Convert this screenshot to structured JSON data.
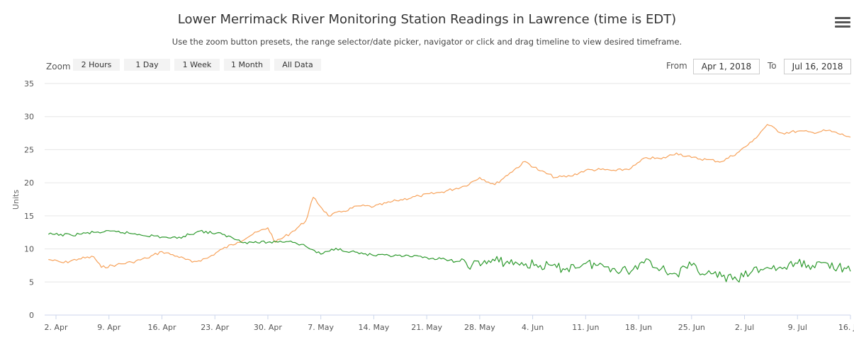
{
  "header": {
    "title": "Lower Merrimack River Monitoring Station Readings in Lawrence (time is EDT)",
    "subtitle": "Use the zoom button presets, the range selector/date picker, navigator or click and drag timeline to view desired timeframe."
  },
  "toolbar": {
    "zoom_label": "Zoom",
    "buttons": [
      "2 Hours",
      "1 Day",
      "1 Week",
      "1 Month",
      "All Data"
    ],
    "from_label": "From",
    "from_value": "Apr 1, 2018",
    "to_label": "To",
    "to_value": "Jul 16, 2018",
    "menu_icon": "hamburger-menu-icon"
  },
  "chart_data": {
    "type": "line",
    "title": "Lower Merrimack River Monitoring Station Readings in Lawrence (time is EDT)",
    "subtitle": "Use the zoom button presets, the range selector/date picker, navigator or click and drag timeline to view desired timeframe.",
    "xlabel": "",
    "ylabel": "Units",
    "x_type": "datetime",
    "xlim": [
      "2018-04-01",
      "2018-07-16"
    ],
    "ylim": [
      0,
      35
    ],
    "yticks": [
      0,
      5,
      10,
      15,
      20,
      25,
      30,
      35
    ],
    "xticks": [
      {
        "date": "2018-04-02",
        "label": "2. Apr"
      },
      {
        "date": "2018-04-09",
        "label": "9. Apr"
      },
      {
        "date": "2018-04-16",
        "label": "16. Apr"
      },
      {
        "date": "2018-04-23",
        "label": "23. Apr"
      },
      {
        "date": "2018-04-30",
        "label": "30. Apr"
      },
      {
        "date": "2018-05-07",
        "label": "7. May"
      },
      {
        "date": "2018-05-14",
        "label": "14. May"
      },
      {
        "date": "2018-05-21",
        "label": "21. May"
      },
      {
        "date": "2018-05-28",
        "label": "28. May"
      },
      {
        "date": "2018-06-04",
        "label": "4. Jun"
      },
      {
        "date": "2018-06-11",
        "label": "11. Jun"
      },
      {
        "date": "2018-06-18",
        "label": "18. Jun"
      },
      {
        "date": "2018-06-25",
        "label": "25. Jun"
      },
      {
        "date": "2018-07-02",
        "label": "2. Jul"
      },
      {
        "date": "2018-07-09",
        "label": "9. Jul"
      },
      {
        "date": "2018-07-16",
        "label": "16. Jul"
      }
    ],
    "grid": true,
    "legend": "none",
    "series": [
      {
        "color": "#f7a35c",
        "points": [
          [
            "2018-04-01",
            8.4
          ],
          [
            "2018-04-03",
            7.9
          ],
          [
            "2018-04-05",
            8.5
          ],
          [
            "2018-04-07",
            8.8
          ],
          [
            "2018-04-08",
            7.2
          ],
          [
            "2018-04-10",
            7.6
          ],
          [
            "2018-04-12",
            8.0
          ],
          [
            "2018-04-14",
            8.6
          ],
          [
            "2018-04-16",
            9.6
          ],
          [
            "2018-04-18",
            8.9
          ],
          [
            "2018-04-20",
            8.0
          ],
          [
            "2018-04-22",
            8.6
          ],
          [
            "2018-04-24",
            10.0
          ],
          [
            "2018-04-26",
            11.0
          ],
          [
            "2018-04-28",
            12.2
          ],
          [
            "2018-04-30",
            13.2
          ],
          [
            "2018-05-01",
            11.0
          ],
          [
            "2018-05-03",
            12.4
          ],
          [
            "2018-05-05",
            14.2
          ],
          [
            "2018-05-06",
            17.8
          ],
          [
            "2018-05-08",
            15.0
          ],
          [
            "2018-05-10",
            15.7
          ],
          [
            "2018-05-12",
            16.5
          ],
          [
            "2018-05-14",
            16.4
          ],
          [
            "2018-05-17",
            17.3
          ],
          [
            "2018-05-20",
            18.0
          ],
          [
            "2018-05-23",
            18.6
          ],
          [
            "2018-05-26",
            19.5
          ],
          [
            "2018-05-28",
            20.8
          ],
          [
            "2018-05-30",
            19.7
          ],
          [
            "2018-06-01",
            21.5
          ],
          [
            "2018-06-03",
            23.2
          ],
          [
            "2018-06-05",
            21.8
          ],
          [
            "2018-06-07",
            20.8
          ],
          [
            "2018-06-09",
            21.0
          ],
          [
            "2018-06-11",
            21.9
          ],
          [
            "2018-06-13",
            22.0
          ],
          [
            "2018-06-15",
            21.8
          ],
          [
            "2018-06-17",
            22.2
          ],
          [
            "2018-06-19",
            23.8
          ],
          [
            "2018-06-21",
            23.6
          ],
          [
            "2018-06-23",
            24.5
          ],
          [
            "2018-06-25",
            23.8
          ],
          [
            "2018-06-27",
            23.5
          ],
          [
            "2018-06-29",
            23.2
          ],
          [
            "2018-07-01",
            24.5
          ],
          [
            "2018-07-03",
            26.2
          ],
          [
            "2018-07-05",
            28.8
          ],
          [
            "2018-07-07",
            27.5
          ],
          [
            "2018-07-09",
            27.8
          ],
          [
            "2018-07-11",
            27.6
          ],
          [
            "2018-07-13",
            27.9
          ],
          [
            "2018-07-16",
            26.9
          ]
        ]
      },
      {
        "color": "#2e9a2e",
        "points": [
          [
            "2018-04-01",
            12.2
          ],
          [
            "2018-04-04",
            12.1
          ],
          [
            "2018-04-07",
            12.5
          ],
          [
            "2018-04-10",
            12.6
          ],
          [
            "2018-04-13",
            12.2
          ],
          [
            "2018-04-16",
            11.8
          ],
          [
            "2018-04-18",
            11.6
          ],
          [
            "2018-04-21",
            12.7
          ],
          [
            "2018-04-24",
            12.2
          ],
          [
            "2018-04-27",
            11.0
          ],
          [
            "2018-04-30",
            11.0
          ],
          [
            "2018-05-03",
            11.2
          ],
          [
            "2018-05-05",
            10.4
          ],
          [
            "2018-05-07",
            9.2
          ],
          [
            "2018-05-09",
            10.1
          ],
          [
            "2018-05-11",
            9.6
          ],
          [
            "2018-05-14",
            9.0
          ],
          [
            "2018-05-18",
            8.9
          ],
          [
            "2018-05-21",
            8.7
          ],
          [
            "2018-05-24",
            8.3
          ],
          [
            "2018-05-27",
            7.6
          ],
          [
            "2018-05-30",
            8.2
          ],
          [
            "2018-06-02",
            7.8
          ],
          [
            "2018-06-05",
            7.5
          ],
          [
            "2018-06-08",
            7.0
          ],
          [
            "2018-06-11",
            7.8
          ],
          [
            "2018-06-14",
            7.3
          ],
          [
            "2018-06-17",
            6.6
          ],
          [
            "2018-06-19",
            8.5
          ],
          [
            "2018-06-21",
            7.0
          ],
          [
            "2018-06-23",
            6.2
          ],
          [
            "2018-06-25",
            7.5
          ],
          [
            "2018-06-27",
            6.3
          ],
          [
            "2018-06-29",
            5.8
          ],
          [
            "2018-07-01",
            5.3
          ],
          [
            "2018-07-03",
            6.6
          ],
          [
            "2018-07-05",
            7.2
          ],
          [
            "2018-07-07",
            7.0
          ],
          [
            "2018-07-09",
            7.8
          ],
          [
            "2018-07-11",
            7.5
          ],
          [
            "2018-07-13",
            7.8
          ],
          [
            "2018-07-16",
            6.6
          ]
        ]
      }
    ]
  }
}
